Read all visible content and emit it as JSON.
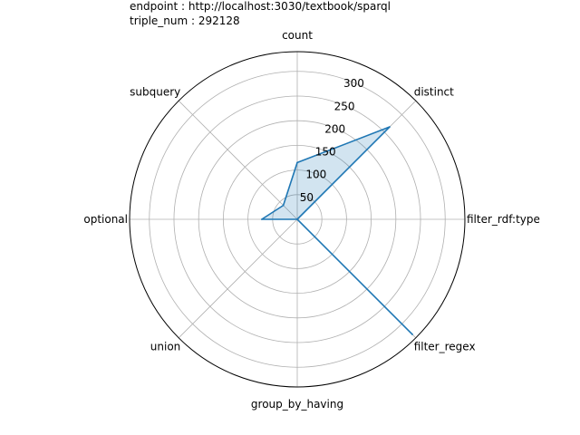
{
  "title_lines": [
    "endpoint : http://localhost:3030/textbook/sparql",
    "triple_num : 292128"
  ],
  "chart_data": {
    "type": "radar",
    "categories": [
      "count",
      "distinct",
      "filter_rdf:type",
      "filter_regex",
      "group_by_having",
      "union",
      "optional",
      "subquery"
    ],
    "values": [
      115,
      265,
      0,
      330,
      0,
      0,
      72,
      40
    ],
    "r_ticks": [
      50,
      100,
      150,
      200,
      250,
      300
    ],
    "rlim": [
      0,
      340
    ],
    "grid": true,
    "series": [
      {
        "values": [
          115,
          265,
          0,
          330,
          0,
          0,
          72,
          40
        ]
      }
    ],
    "colors": {
      "line": "#1f77b4",
      "fill": "#1f77b4",
      "grid": "#b0b0b0",
      "frame": "#000000"
    }
  }
}
